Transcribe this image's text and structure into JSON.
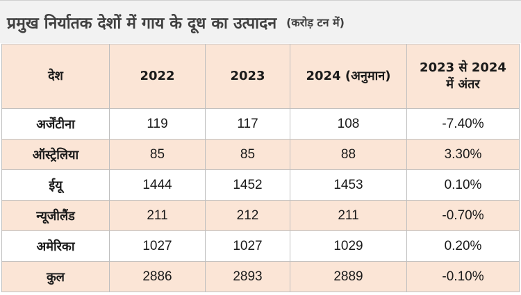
{
  "title": {
    "main": "प्रमुख निर्यातक देशों में गाय के दूध का उत्पादन",
    "unit": "(करोड़ टन में)"
  },
  "table": {
    "headers": [
      "देश",
      "2022",
      "2023",
      "2024 (अनुमान)",
      "2023 से 2024",
      "में अंतर"
    ],
    "rows": [
      {
        "country": "अर्जेंटीना",
        "y2022": "119",
        "y2023": "117",
        "y2024": "108",
        "diff": "-7.40%"
      },
      {
        "country": "ऑस्ट्रेलिया",
        "y2022": "85",
        "y2023": "85",
        "y2024": "88",
        "diff": "3.30%"
      },
      {
        "country": "ईयू",
        "y2022": "1444",
        "y2023": "1452",
        "y2024": "1453",
        "diff": "0.10%"
      },
      {
        "country": "न्यूजीलैंड",
        "y2022": "211",
        "y2023": "212",
        "y2024": "211",
        "diff": "-0.70%"
      },
      {
        "country": "अमेरिका",
        "y2022": "1027",
        "y2023": "1027",
        "y2024": "1029",
        "diff": "0.20%"
      },
      {
        "country": "कुल",
        "y2022": "2886",
        "y2023": "2893",
        "y2024": "2889",
        "diff": "-0.10%"
      }
    ]
  },
  "colors": {
    "header_bg": "#fbe5d6",
    "alt_row_bg": "#fbe5d6",
    "title_bg": "#f2f2f2",
    "border": "#bfbfbf"
  }
}
